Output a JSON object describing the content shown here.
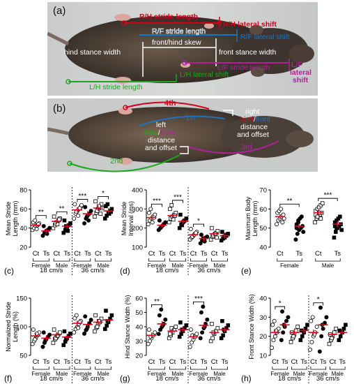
{
  "panel_a": {
    "letter": "(a)",
    "labels": {
      "rh_stride": "R/H stride length",
      "rh_lateral": "R/H lateral shift",
      "rf_stride": "R/F stride length",
      "rf_lateral": "R/F lateral shift",
      "skew": "front/hind skew",
      "hind_width": "hind stance width",
      "front_width": "front stance width",
      "lf_stride": "L/F stride length",
      "lf_lateral_1": "L/F",
      "lf_lateral_2": "lateral",
      "lf_lateral_3": "shift",
      "lh_lateral": "L/H lateral shift",
      "lh_stride": "L/H stride length"
    },
    "colors": {
      "rh": "#d6001c",
      "rf": "#1e73be",
      "lf": "#b0209a",
      "lh": "#18a81a"
    }
  },
  "panel_b": {
    "letter": "(b)",
    "labels": {
      "n4": "4th",
      "n1": "1st",
      "n3": "3rd",
      "n2": "2nd",
      "left1": "left",
      "left2a": "hind",
      "left2b": "/",
      "left2c": "front",
      "left3": "distance",
      "left4": "and offset",
      "right1": "right",
      "right2a": "hind",
      "right2b": "/",
      "right2c": "front",
      "right3": "distance",
      "right4": "and offset"
    }
  },
  "group_labels": {
    "ct": "Ct",
    "ts": "Ts",
    "female": "Female",
    "male": "Male",
    "speed18": "18 cm/s",
    "speed36": "36 cm/s"
  },
  "chart_data": [
    {
      "id": "c",
      "letter": "(c)",
      "type": "scatter",
      "ylabel": "Mean Stride Length (mm)",
      "ylabel_lines": [
        "Mean Stride",
        "Length  (mm)"
      ],
      "ylim": [
        20,
        80
      ],
      "yticks": [
        20,
        40,
        60,
        80
      ],
      "categories": [
        "18 cm/s Female Ct",
        "18 cm/s Female Ts",
        "18 cm/s Male Ct",
        "18 cm/s Male Ts",
        "36 cm/s Female Ct",
        "36 cm/s Female Ts",
        "36 cm/s Male Ct",
        "36 cm/s Male Ts"
      ],
      "means": [
        43,
        37,
        47,
        42,
        59,
        55,
        61,
        58
      ],
      "points": [
        [
          38,
          40,
          42,
          43,
          45,
          46,
          48,
          39,
          44
        ],
        [
          32,
          35,
          37,
          38,
          40,
          42,
          36,
          34
        ],
        [
          40,
          43,
          46,
          48,
          50,
          52,
          45,
          44,
          49
        ],
        [
          35,
          38,
          40,
          43,
          45,
          48,
          42,
          37
        ],
        [
          50,
          55,
          58,
          60,
          62,
          65,
          57,
          53,
          61,
          64
        ],
        [
          45,
          50,
          53,
          55,
          58,
          62,
          52,
          48
        ],
        [
          52,
          56,
          60,
          62,
          65,
          68,
          58,
          63,
          55,
          61
        ],
        [
          50,
          53,
          56,
          58,
          60,
          63,
          65,
          55,
          57
        ]
      ],
      "brackets": [
        {
          "from": 0,
          "to": 1,
          "label": "**"
        },
        {
          "from": 2,
          "to": 3,
          "label": "**"
        },
        {
          "from": 4,
          "to": 5,
          "label": "***"
        },
        {
          "from": 6,
          "to": 7,
          "label": "*"
        }
      ]
    },
    {
      "id": "d",
      "letter": "(d)",
      "type": "scatter",
      "ylabel": "Mean Stride Interval (ms)",
      "ylabel_lines": [
        "Mean Stride",
        "Interval (ms)"
      ],
      "ylim": [
        100,
        400
      ],
      "yticks": [
        100,
        200,
        300,
        400
      ],
      "categories": [
        "18 cm/s Female Ct",
        "18 cm/s Female Ts",
        "18 cm/s Male Ct",
        "18 cm/s Male Ts",
        "36 cm/s Female Ct",
        "36 cm/s Female Ts",
        "36 cm/s Male Ct",
        "36 cm/s Male Ts"
      ],
      "means": [
        255,
        215,
        265,
        235,
        165,
        145,
        170,
        160
      ],
      "points": [
        [
          220,
          240,
          250,
          260,
          270,
          280,
          300,
          230,
          255
        ],
        [
          190,
          200,
          210,
          220,
          230,
          240,
          205,
          215
        ],
        [
          230,
          250,
          260,
          270,
          280,
          300,
          320,
          245,
          265
        ],
        [
          200,
          220,
          230,
          240,
          250,
          270,
          215,
          235
        ],
        [
          140,
          150,
          160,
          170,
          180,
          195,
          155,
          165,
          175
        ],
        [
          120,
          135,
          140,
          150,
          155,
          165,
          145,
          130
        ],
        [
          140,
          155,
          165,
          175,
          185,
          200,
          160,
          170,
          150
        ],
        [
          135,
          145,
          150,
          160,
          170,
          180,
          155,
          165
        ]
      ],
      "brackets": [
        {
          "from": 0,
          "to": 1,
          "label": "***"
        },
        {
          "from": 2,
          "to": 3,
          "label": "***"
        },
        {
          "from": 4,
          "to": 5,
          "label": "*"
        }
      ]
    },
    {
      "id": "e",
      "letter": "(e)",
      "type": "scatter",
      "ylabel": "Maximum Body Length (mm)",
      "ylabel_lines": [
        "Maximum Body",
        "Length (mm)"
      ],
      "ylim": [
        40,
        70
      ],
      "yticks": [
        40,
        50,
        60,
        70
      ],
      "categories": [
        "Female Ct",
        "Female Ts",
        "Male Ct",
        "Male Ts"
      ],
      "means": [
        56,
        51,
        58,
        52
      ],
      "points": [
        [
          52,
          54,
          55,
          56,
          57,
          58,
          59,
          60,
          53,
          55
        ],
        [
          44,
          47,
          49,
          50,
          51,
          52,
          53,
          55,
          56,
          48,
          50,
          54
        ],
        [
          53,
          55,
          56,
          57,
          58,
          59,
          60,
          61,
          62,
          63,
          57,
          56,
          58,
          55
        ],
        [
          45,
          48,
          50,
          51,
          52,
          53,
          54,
          55,
          56,
          49,
          51,
          50
        ]
      ],
      "brackets": [
        {
          "from": 0,
          "to": 1,
          "label": "**"
        },
        {
          "from": 2,
          "to": 3,
          "label": "***"
        }
      ]
    },
    {
      "id": "f",
      "letter": "(f)",
      "type": "scatter",
      "ylabel": "Normalized Stride Length (%)",
      "ylabel_lines": [
        "Normalized Stride",
        "Length (%)"
      ],
      "ylim": [
        50,
        150
      ],
      "yticks": [
        50,
        100,
        150
      ],
      "categories": [
        "18 cm/s Female Ct",
        "18 cm/s Female Ts",
        "18 cm/s Male Ct",
        "18 cm/s Male Ts",
        "36 cm/s Female Ct",
        "36 cm/s Female Ts",
        "36 cm/s Male Ct",
        "36 cm/s Male Ts"
      ],
      "means": [
        84,
        80,
        86,
        82,
        106,
        104,
        108,
        112
      ],
      "points": [
        [
          70,
          75,
          80,
          85,
          90,
          95,
          78,
          88
        ],
        [
          65,
          72,
          78,
          82,
          86,
          90,
          76
        ],
        [
          72,
          78,
          82,
          86,
          90,
          95,
          80,
          84
        ],
        [
          68,
          74,
          80,
          84,
          88,
          92,
          78
        ],
        [
          90,
          96,
          100,
          105,
          110,
          115,
          120,
          98,
          108
        ],
        [
          88,
          94,
          100,
          106,
          112,
          118,
          96
        ],
        [
          92,
          98,
          104,
          108,
          114,
          120,
          100,
          110
        ],
        [
          96,
          102,
          108,
          114,
          120,
          128,
          110
        ]
      ],
      "brackets": []
    },
    {
      "id": "g",
      "letter": "(g)",
      "type": "scatter",
      "ylabel": "Hind Stance Width (%)",
      "ylabel_lines": [
        "Hind Stance Width (%)"
      ],
      "ylim": [
        20,
        60
      ],
      "yticks": [
        20,
        30,
        40,
        50,
        60
      ],
      "categories": [
        "18 cm/s Female Ct",
        "18 cm/s Female Ts",
        "18 cm/s Male Ct",
        "18 cm/s Male Ts",
        "36 cm/s Female Ct",
        "36 cm/s Female Ts",
        "36 cm/s Male Ct",
        "36 cm/s Male Ts"
      ],
      "means": [
        34,
        42,
        37,
        38,
        33,
        41,
        36,
        38
      ],
      "points": [
        [
          28,
          30,
          32,
          34,
          36,
          38,
          33
        ],
        [
          35,
          38,
          40,
          42,
          45,
          48,
          52,
          41
        ],
        [
          32,
          34,
          36,
          38,
          40,
          35,
          39
        ],
        [
          33,
          35,
          37,
          39,
          41,
          43,
          38
        ],
        [
          26,
          29,
          31,
          33,
          35,
          38,
          34
        ],
        [
          32,
          36,
          39,
          42,
          45,
          50,
          54,
          40
        ],
        [
          30,
          32,
          35,
          37,
          39,
          42,
          36
        ],
        [
          32,
          34,
          37,
          39,
          41,
          44,
          38
        ]
      ],
      "brackets": [
        {
          "from": 0,
          "to": 1,
          "label": "**"
        },
        {
          "from": 4,
          "to": 5,
          "label": "***"
        }
      ]
    },
    {
      "id": "h",
      "letter": "(h)",
      "type": "scatter",
      "ylabel": "Front Stance Width (%)",
      "ylabel_lines": [
        "Front Stance Width (%)"
      ],
      "ylim": [
        10,
        40
      ],
      "yticks": [
        10,
        20,
        30,
        40
      ],
      "categories": [
        "18 cm/s Female Ct",
        "18 cm/s Female Ts",
        "18 cm/s Male Ct",
        "18 cm/s Male Ts",
        "36 cm/s Female Ct",
        "36 cm/s Female Ts",
        "36 cm/s Male Ct",
        "36 cm/s Male Ts"
      ],
      "means": [
        22,
        26,
        22,
        23,
        22,
        26,
        21,
        22
      ],
      "points": [
        [
          14,
          18,
          20,
          22,
          24,
          26,
          28,
          23
        ],
        [
          18,
          22,
          25,
          28,
          30,
          33,
          26
        ],
        [
          17,
          19,
          21,
          23,
          25,
          22,
          20
        ],
        [
          18,
          20,
          22,
          24,
          26,
          23
        ],
        [
          13,
          17,
          20,
          22,
          25,
          28,
          30,
          21
        ],
        [
          12,
          20,
          24,
          27,
          30,
          35,
          26
        ],
        [
          16,
          18,
          20,
          22,
          24,
          21,
          19
        ],
        [
          18,
          20,
          22,
          24,
          26,
          23
        ]
      ],
      "brackets": [
        {
          "from": 0,
          "to": 1,
          "label": "*"
        },
        {
          "from": 4,
          "to": 5,
          "label": "*"
        }
      ]
    }
  ]
}
